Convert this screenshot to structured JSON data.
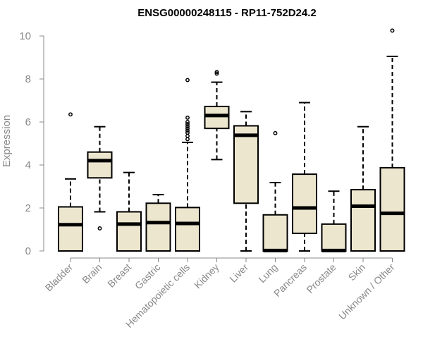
{
  "chart_data": {
    "type": "boxplot",
    "title": "ENSG00000248115 - RP11-752D24.2",
    "xlabel": "",
    "ylabel": "Expression",
    "ylim": [
      0,
      10
    ],
    "yticks": [
      0,
      2,
      4,
      6,
      8,
      10
    ],
    "grid": false,
    "box_fill": "#ede6cf",
    "box_stroke": "#000000",
    "categories": [
      "Bladder",
      "Brain",
      "Breast",
      "Gastric",
      "Hematopoietic cells",
      "Kidney",
      "Liver",
      "Lung",
      "Pancreas",
      "Prostate",
      "Skin",
      "Unknown / Other"
    ],
    "boxes": [
      {
        "category": "Bladder",
        "whisker_low": 0,
        "q1": 0,
        "median": 1.22,
        "q3": 2.05,
        "whisker_high": 3.35,
        "outliers": [
          6.35
        ]
      },
      {
        "category": "Brain",
        "whisker_low": 1.82,
        "q1": 3.4,
        "median": 4.2,
        "q3": 4.6,
        "whisker_high": 5.78,
        "outliers": [
          1.05
        ]
      },
      {
        "category": "Breast",
        "whisker_low": 0,
        "q1": 0,
        "median": 1.25,
        "q3": 1.82,
        "whisker_high": 3.65,
        "outliers": []
      },
      {
        "category": "Gastric",
        "whisker_low": 0,
        "q1": 0,
        "median": 1.32,
        "q3": 2.22,
        "whisker_high": 2.62,
        "outliers": []
      },
      {
        "category": "Hematopoietic cells",
        "whisker_low": 0,
        "q1": 0,
        "median": 1.28,
        "q3": 2.02,
        "whisker_high": 5.05,
        "outliers": [
          5.2,
          5.35,
          5.5,
          5.6,
          5.7,
          5.8,
          5.9,
          6.0,
          6.2,
          7.95
        ]
      },
      {
        "category": "Kidney",
        "whisker_low": 4.25,
        "q1": 5.7,
        "median": 6.3,
        "q3": 6.72,
        "whisker_high": 7.85,
        "outliers": [
          8.25,
          8.32
        ]
      },
      {
        "category": "Liver",
        "whisker_low": 0,
        "q1": 2.22,
        "median": 5.38,
        "q3": 5.82,
        "whisker_high": 6.48,
        "outliers": []
      },
      {
        "category": "Lung",
        "whisker_low": 0,
        "q1": 0,
        "median": 0.02,
        "q3": 1.68,
        "whisker_high": 3.18,
        "outliers": [
          5.48
        ]
      },
      {
        "category": "Pancreas",
        "whisker_low": 0,
        "q1": 0.82,
        "median": 2.0,
        "q3": 3.57,
        "whisker_high": 6.9,
        "outliers": []
      },
      {
        "category": "Prostate",
        "whisker_low": 0,
        "q1": 0,
        "median": 0.02,
        "q3": 1.25,
        "whisker_high": 2.78,
        "outliers": []
      },
      {
        "category": "Skin",
        "whisker_low": 0,
        "q1": 0,
        "median": 2.08,
        "q3": 2.85,
        "whisker_high": 5.78,
        "outliers": []
      },
      {
        "category": "Unknown / Other",
        "whisker_low": 0,
        "q1": 0,
        "median": 1.75,
        "q3": 3.87,
        "whisker_high": 9.05,
        "outliers": [
          10.25
        ]
      }
    ]
  }
}
